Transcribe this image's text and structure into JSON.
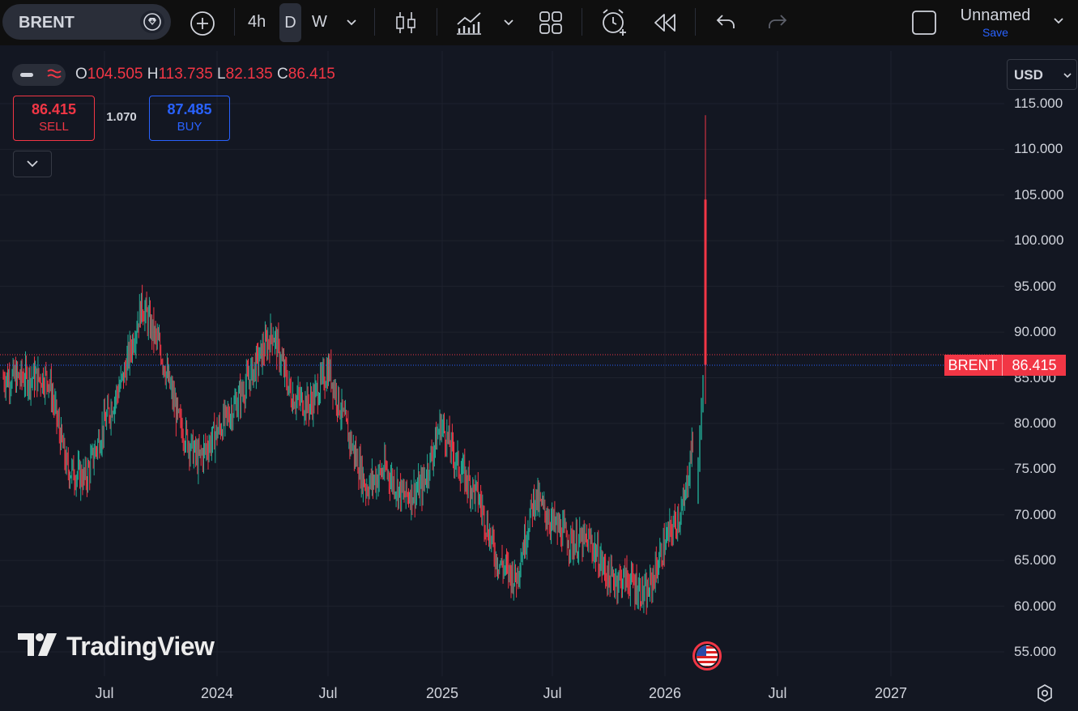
{
  "toolbar": {
    "symbol": "BRENT",
    "timeframes": [
      "4h",
      "D",
      "W"
    ],
    "active_timeframe": "D",
    "layout_name": "Unnamed",
    "save_label": "Save"
  },
  "legend": {
    "o_label": "O",
    "o_value": "104.505",
    "h_label": "H",
    "h_value": "113.735",
    "l_label": "L",
    "l_value": "82.135",
    "c_label": "C",
    "c_value": "86.415"
  },
  "trade": {
    "sell_price": "86.415",
    "sell_label": "SELL",
    "spread": "1.070",
    "buy_price": "87.485",
    "buy_label": "BUY"
  },
  "currency": "USD",
  "price_tag": {
    "symbol": "BRENT",
    "value": "86.415"
  },
  "branding": "TradingView",
  "colors": {
    "up": "#22ab94",
    "down": "#f23645",
    "accent": "#2962ff",
    "background": "#131722"
  },
  "chart_data": {
    "type": "candlestick",
    "y_ticks": [
      "115.000",
      "110.000",
      "105.000",
      "100.000",
      "95.000",
      "90.000",
      "85.000",
      "80.000",
      "75.000",
      "70.000",
      "65.000",
      "60.000",
      "55.000"
    ],
    "x_ticks": [
      "Jul",
      "2024",
      "Jul",
      "2025",
      "Jul",
      "2026",
      "Jul",
      "2027"
    ],
    "ylim": [
      55,
      115
    ],
    "last_price": 86.415,
    "ask_price": 87.485,
    "last_bar": {
      "open": 104.505,
      "high": 113.735,
      "low": 82.135,
      "close": 86.415
    },
    "series": [
      {
        "values": [
          [
            "2023-04",
            85
          ],
          [
            "2023-05",
            75
          ],
          [
            "2023-06",
            74
          ],
          [
            "2023-07",
            80
          ],
          [
            "2023-08",
            85
          ],
          [
            "2023-09",
            93
          ],
          [
            "2023-10",
            88
          ],
          [
            "2023-11",
            80
          ],
          [
            "2023-12",
            76
          ],
          [
            "2024-01",
            79
          ],
          [
            "2024-02",
            82
          ],
          [
            "2024-03",
            86
          ],
          [
            "2024-04",
            90
          ],
          [
            "2024-05",
            83
          ],
          [
            "2024-06",
            82
          ],
          [
            "2024-07",
            86
          ],
          [
            "2024-08",
            79
          ],
          [
            "2024-09",
            73
          ],
          [
            "2024-10",
            75
          ],
          [
            "2024-11",
            72
          ],
          [
            "2024-12",
            73
          ],
          [
            "2025-01",
            80
          ],
          [
            "2025-02",
            75
          ],
          [
            "2025-03",
            72
          ],
          [
            "2025-04",
            65
          ],
          [
            "2025-05",
            63
          ],
          [
            "2025-06",
            72
          ],
          [
            "2025-07",
            69
          ],
          [
            "2025-08",
            67
          ],
          [
            "2025-09",
            67
          ],
          [
            "2025-10",
            63
          ],
          [
            "2025-11",
            63
          ],
          [
            "2025-12",
            61
          ],
          [
            "2026-01",
            67
          ],
          [
            "2026-02",
            71
          ],
          [
            "2026-03",
            86.415
          ]
        ]
      }
    ]
  }
}
